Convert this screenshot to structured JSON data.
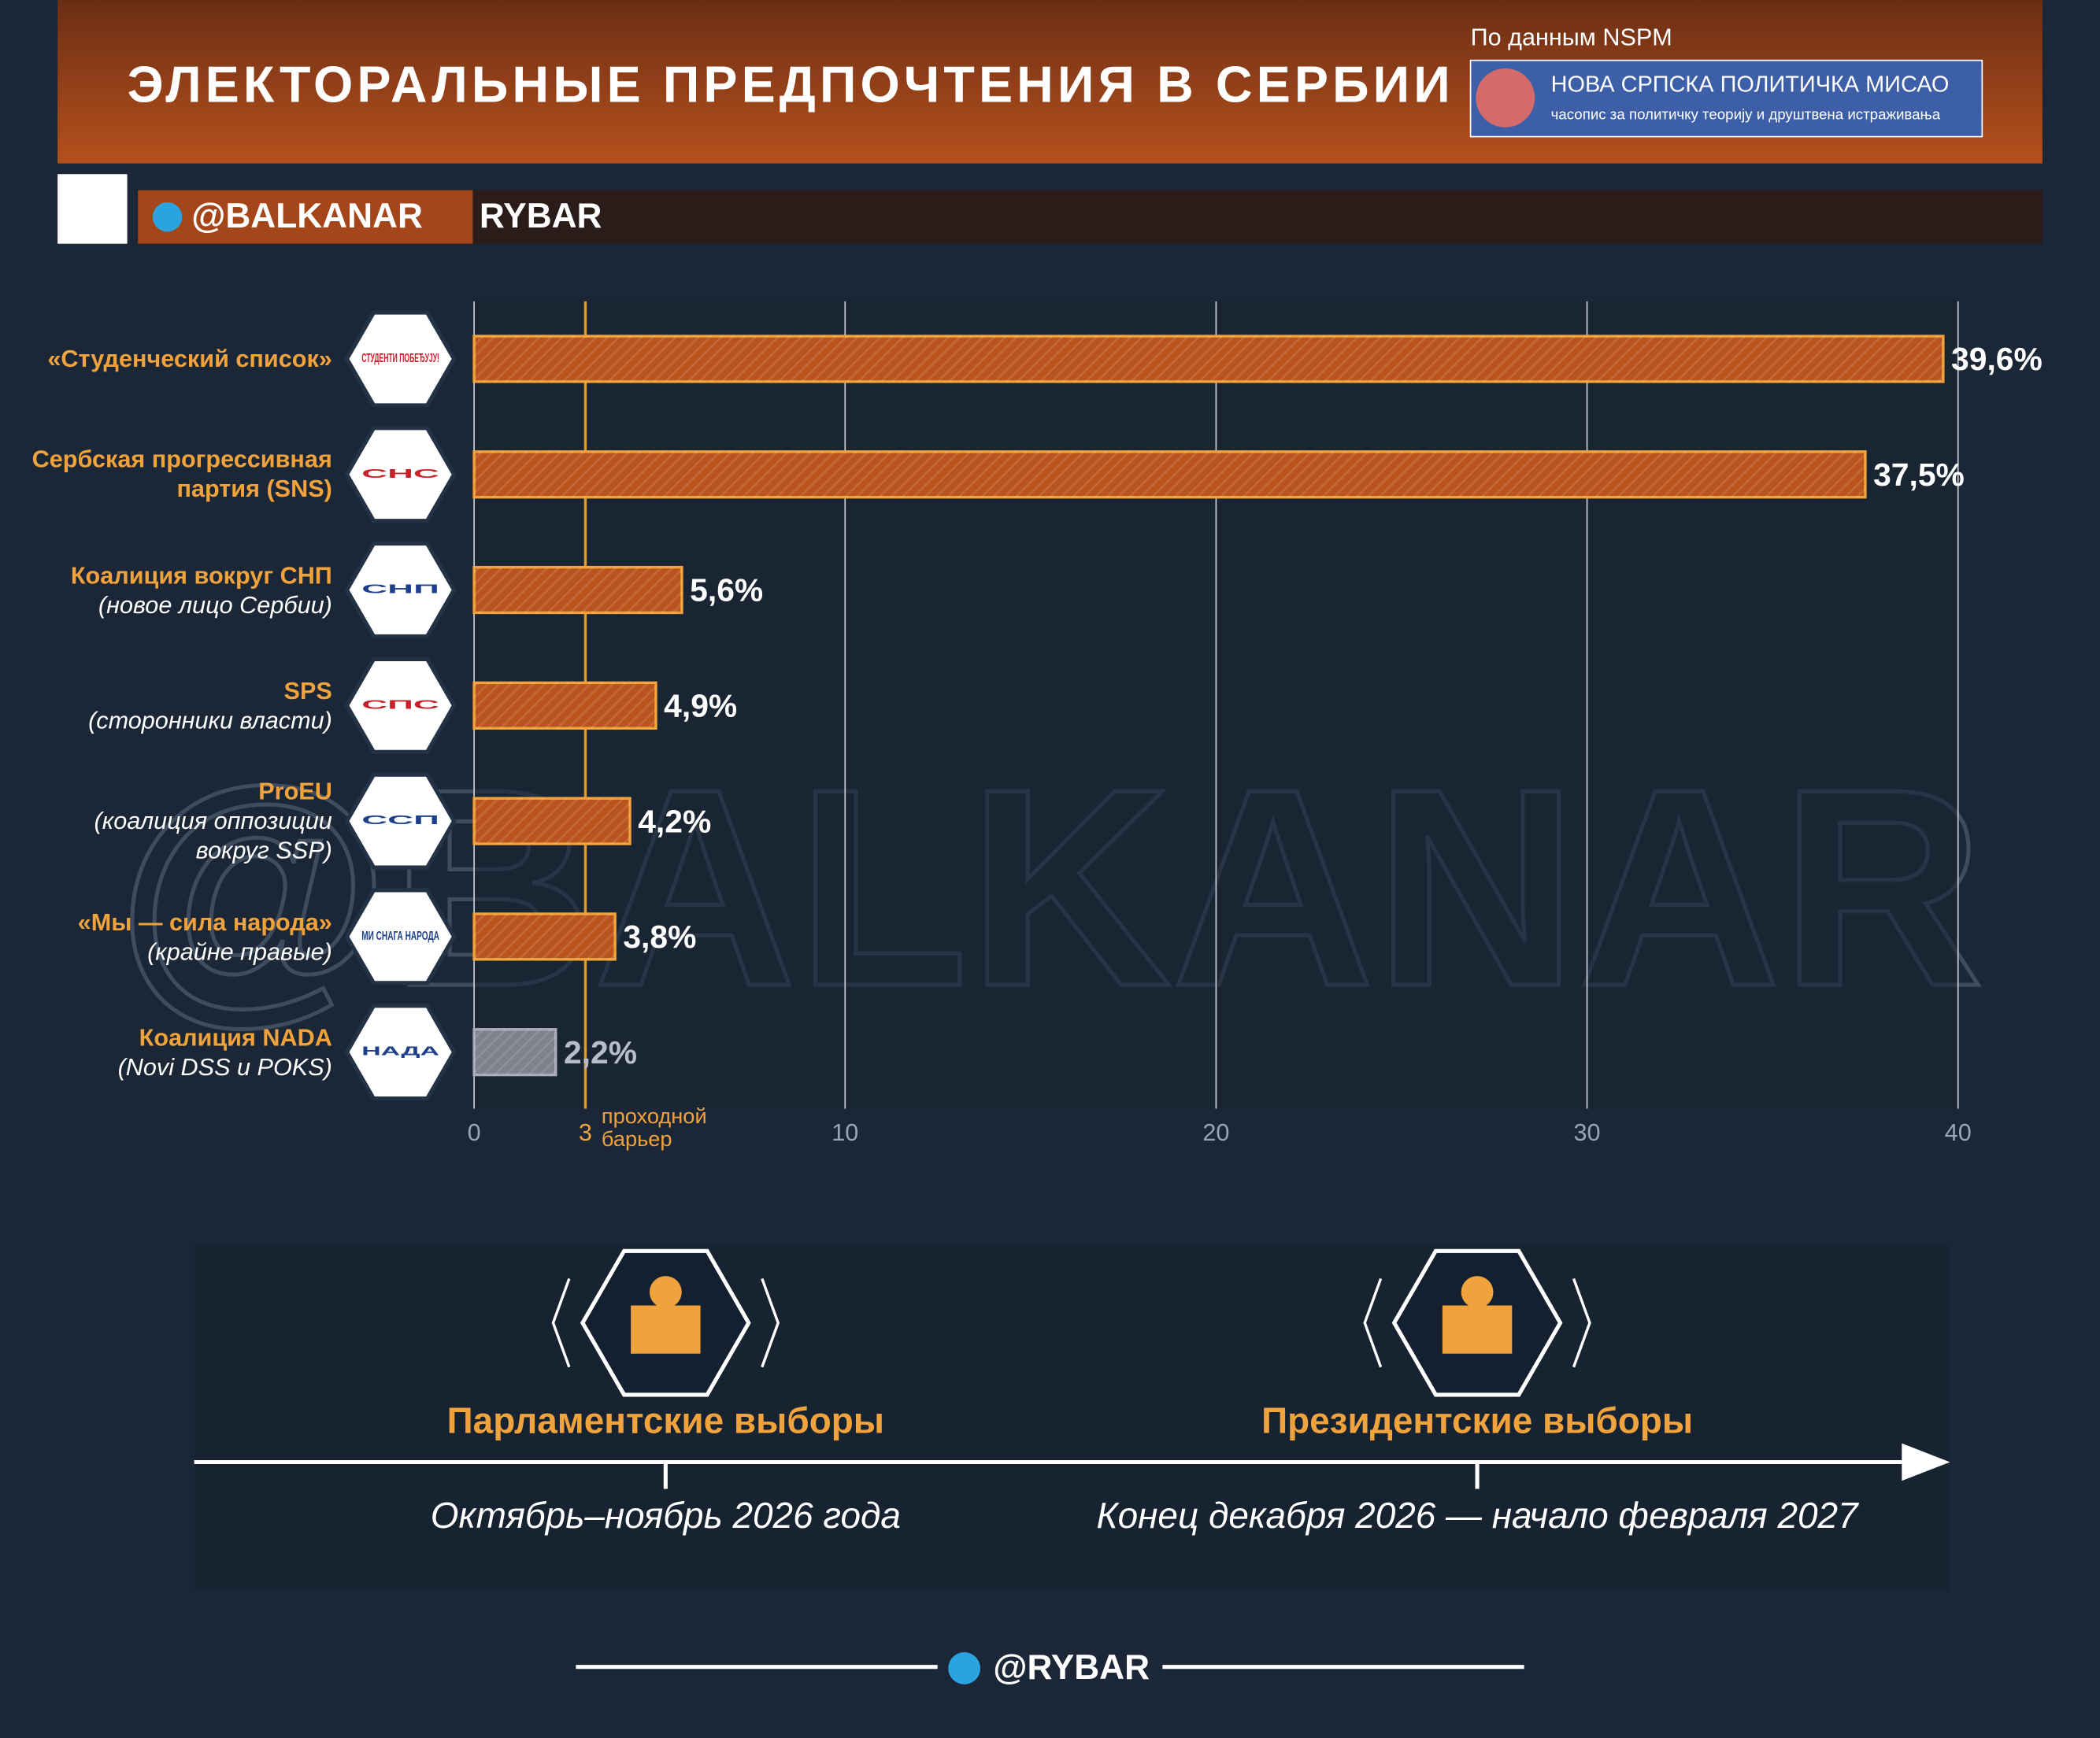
{
  "header": {
    "title": "ЭЛЕКТОРАЛЬНЫЕ ПРЕДПОЧТЕНИЯ В СЕРБИИ",
    "source": "По данным NSPM",
    "source_logo": {
      "name": "НОВА СРПСКА ПОЛИТИЧКА МИСАО",
      "tagline": "часопис за политичку теорију и друштвена истраживања"
    },
    "handle": "@BALKANAR",
    "brand": "RYBAR"
  },
  "watermark": "@BALKANAR",
  "chart_data": {
    "type": "hbar",
    "categories": [
      "«Студенческий список»",
      "Сербская прогрессивная партия (SNS)",
      "Коалиция вокруг СНП",
      "SPS",
      "ProEU",
      "«Мы — сила народа»",
      "Коалиция NADA"
    ],
    "notes": [
      null,
      null,
      "(новое лицо Сербии)",
      "(сторонники власти)",
      "(коалиция оппозиции вокруг SSP)",
      "(крайне правые)",
      "(Novi DSS и POKS)"
    ],
    "logos": [
      "СТУДЕНТИ ПОБЕЂУЈУ!",
      "СНС",
      "СНП",
      "СПС",
      "ССП",
      "МИ СНАГА НАРОДА",
      "НАДА"
    ],
    "values": [
      39.6,
      37.5,
      5.6,
      4.9,
      4.2,
      3.8,
      2.2
    ],
    "value_labels": [
      "39,6%",
      "37,5%",
      "5,6%",
      "4,9%",
      "4,2%",
      "3,8%",
      "2,2%"
    ],
    "colors": [
      "#b9541f",
      "#b9541f",
      "#b9541f",
      "#b9541f",
      "#b9541f",
      "#b9541f",
      "#7d838c"
    ],
    "xlim": [
      0,
      40
    ],
    "xticks": [
      0,
      10,
      20,
      30,
      40
    ],
    "grid": true,
    "threshold": {
      "value": 3,
      "label": "проходной барьер"
    }
  },
  "timeline": [
    {
      "title": "Парламентские выборы",
      "date": "Октябрь–ноябрь 2026 года"
    },
    {
      "title": "Президентские выборы",
      "date": "Конец декабря 2026 — начало февраля 2027"
    }
  ],
  "footer": {
    "handle": "@RYBAR"
  }
}
